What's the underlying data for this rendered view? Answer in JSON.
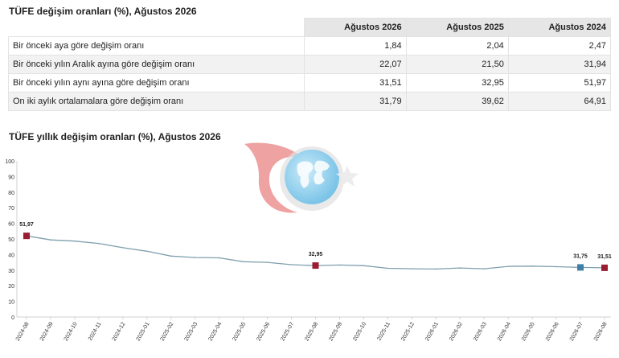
{
  "table": {
    "title": "TÜFE değişim oranları (%), Ağustos 2026",
    "columns": [
      "Ağustos 2026",
      "Ağustos 2025",
      "Ağustos 2024"
    ],
    "rows": [
      {
        "label": "Bir önceki aya göre değişim oranı",
        "values": [
          "1,84",
          "2,04",
          "2,47"
        ]
      },
      {
        "label": "Bir önceki yılın Aralık ayına göre değişim oranı",
        "values": [
          "22,07",
          "21,50",
          "31,94"
        ]
      },
      {
        "label": "Bir önceki yılın aynı ayına göre değişim oranı",
        "values": [
          "31,51",
          "32,95",
          "51,97"
        ]
      },
      {
        "label": "On iki aylık ortalamalara göre değişim oranı",
        "values": [
          "31,79",
          "39,62",
          "64,91"
        ]
      }
    ]
  },
  "chart": {
    "title": "TÜFE yıllık değişim oranları (%), Ağustos 2026"
  },
  "chart_data": {
    "type": "line",
    "title": "TÜFE yıllık değişim oranları (%), Ağustos 2026",
    "xlabel": "",
    "ylabel": "",
    "ylim": [
      0,
      100
    ],
    "yticks": [
      0,
      10,
      20,
      30,
      40,
      50,
      60,
      70,
      80,
      90,
      100
    ],
    "grid": false,
    "line_color": "#7f9fae",
    "x": [
      "2024-08",
      "2024-09",
      "2024-10",
      "2024-11",
      "2024-12",
      "2025-01",
      "2025-02",
      "2025-03",
      "2025-04",
      "2025-05",
      "2025-06",
      "2025-07",
      "2025-08",
      "2025-09",
      "2025-10",
      "2025-11",
      "2025-12",
      "2026-01",
      "2026-02",
      "2026-03",
      "2026-04",
      "2026-05",
      "2026-06",
      "2026-07",
      "2026-08"
    ],
    "series": [
      {
        "values": [
          51.97,
          49.4,
          48.6,
          47.1,
          44.4,
          42.1,
          39.0,
          38.1,
          37.9,
          35.4,
          35.0,
          33.5,
          32.95,
          33.3,
          32.9,
          31.2,
          30.9,
          30.7,
          31.4,
          30.9,
          32.4,
          32.6,
          32.2,
          31.75,
          31.51
        ]
      }
    ],
    "markers": [
      {
        "x": "2024-08",
        "value": 51.97,
        "label": "51,97",
        "color": "#9b1b30"
      },
      {
        "x": "2025-08",
        "value": 32.95,
        "label": "32,95",
        "color": "#9b1b30"
      },
      {
        "x": "2026-07",
        "value": 31.75,
        "label": "31,75",
        "color": "#3f7fa8"
      },
      {
        "x": "2026-08",
        "value": 31.51,
        "label": "31,51",
        "color": "#9b1b30"
      }
    ]
  }
}
